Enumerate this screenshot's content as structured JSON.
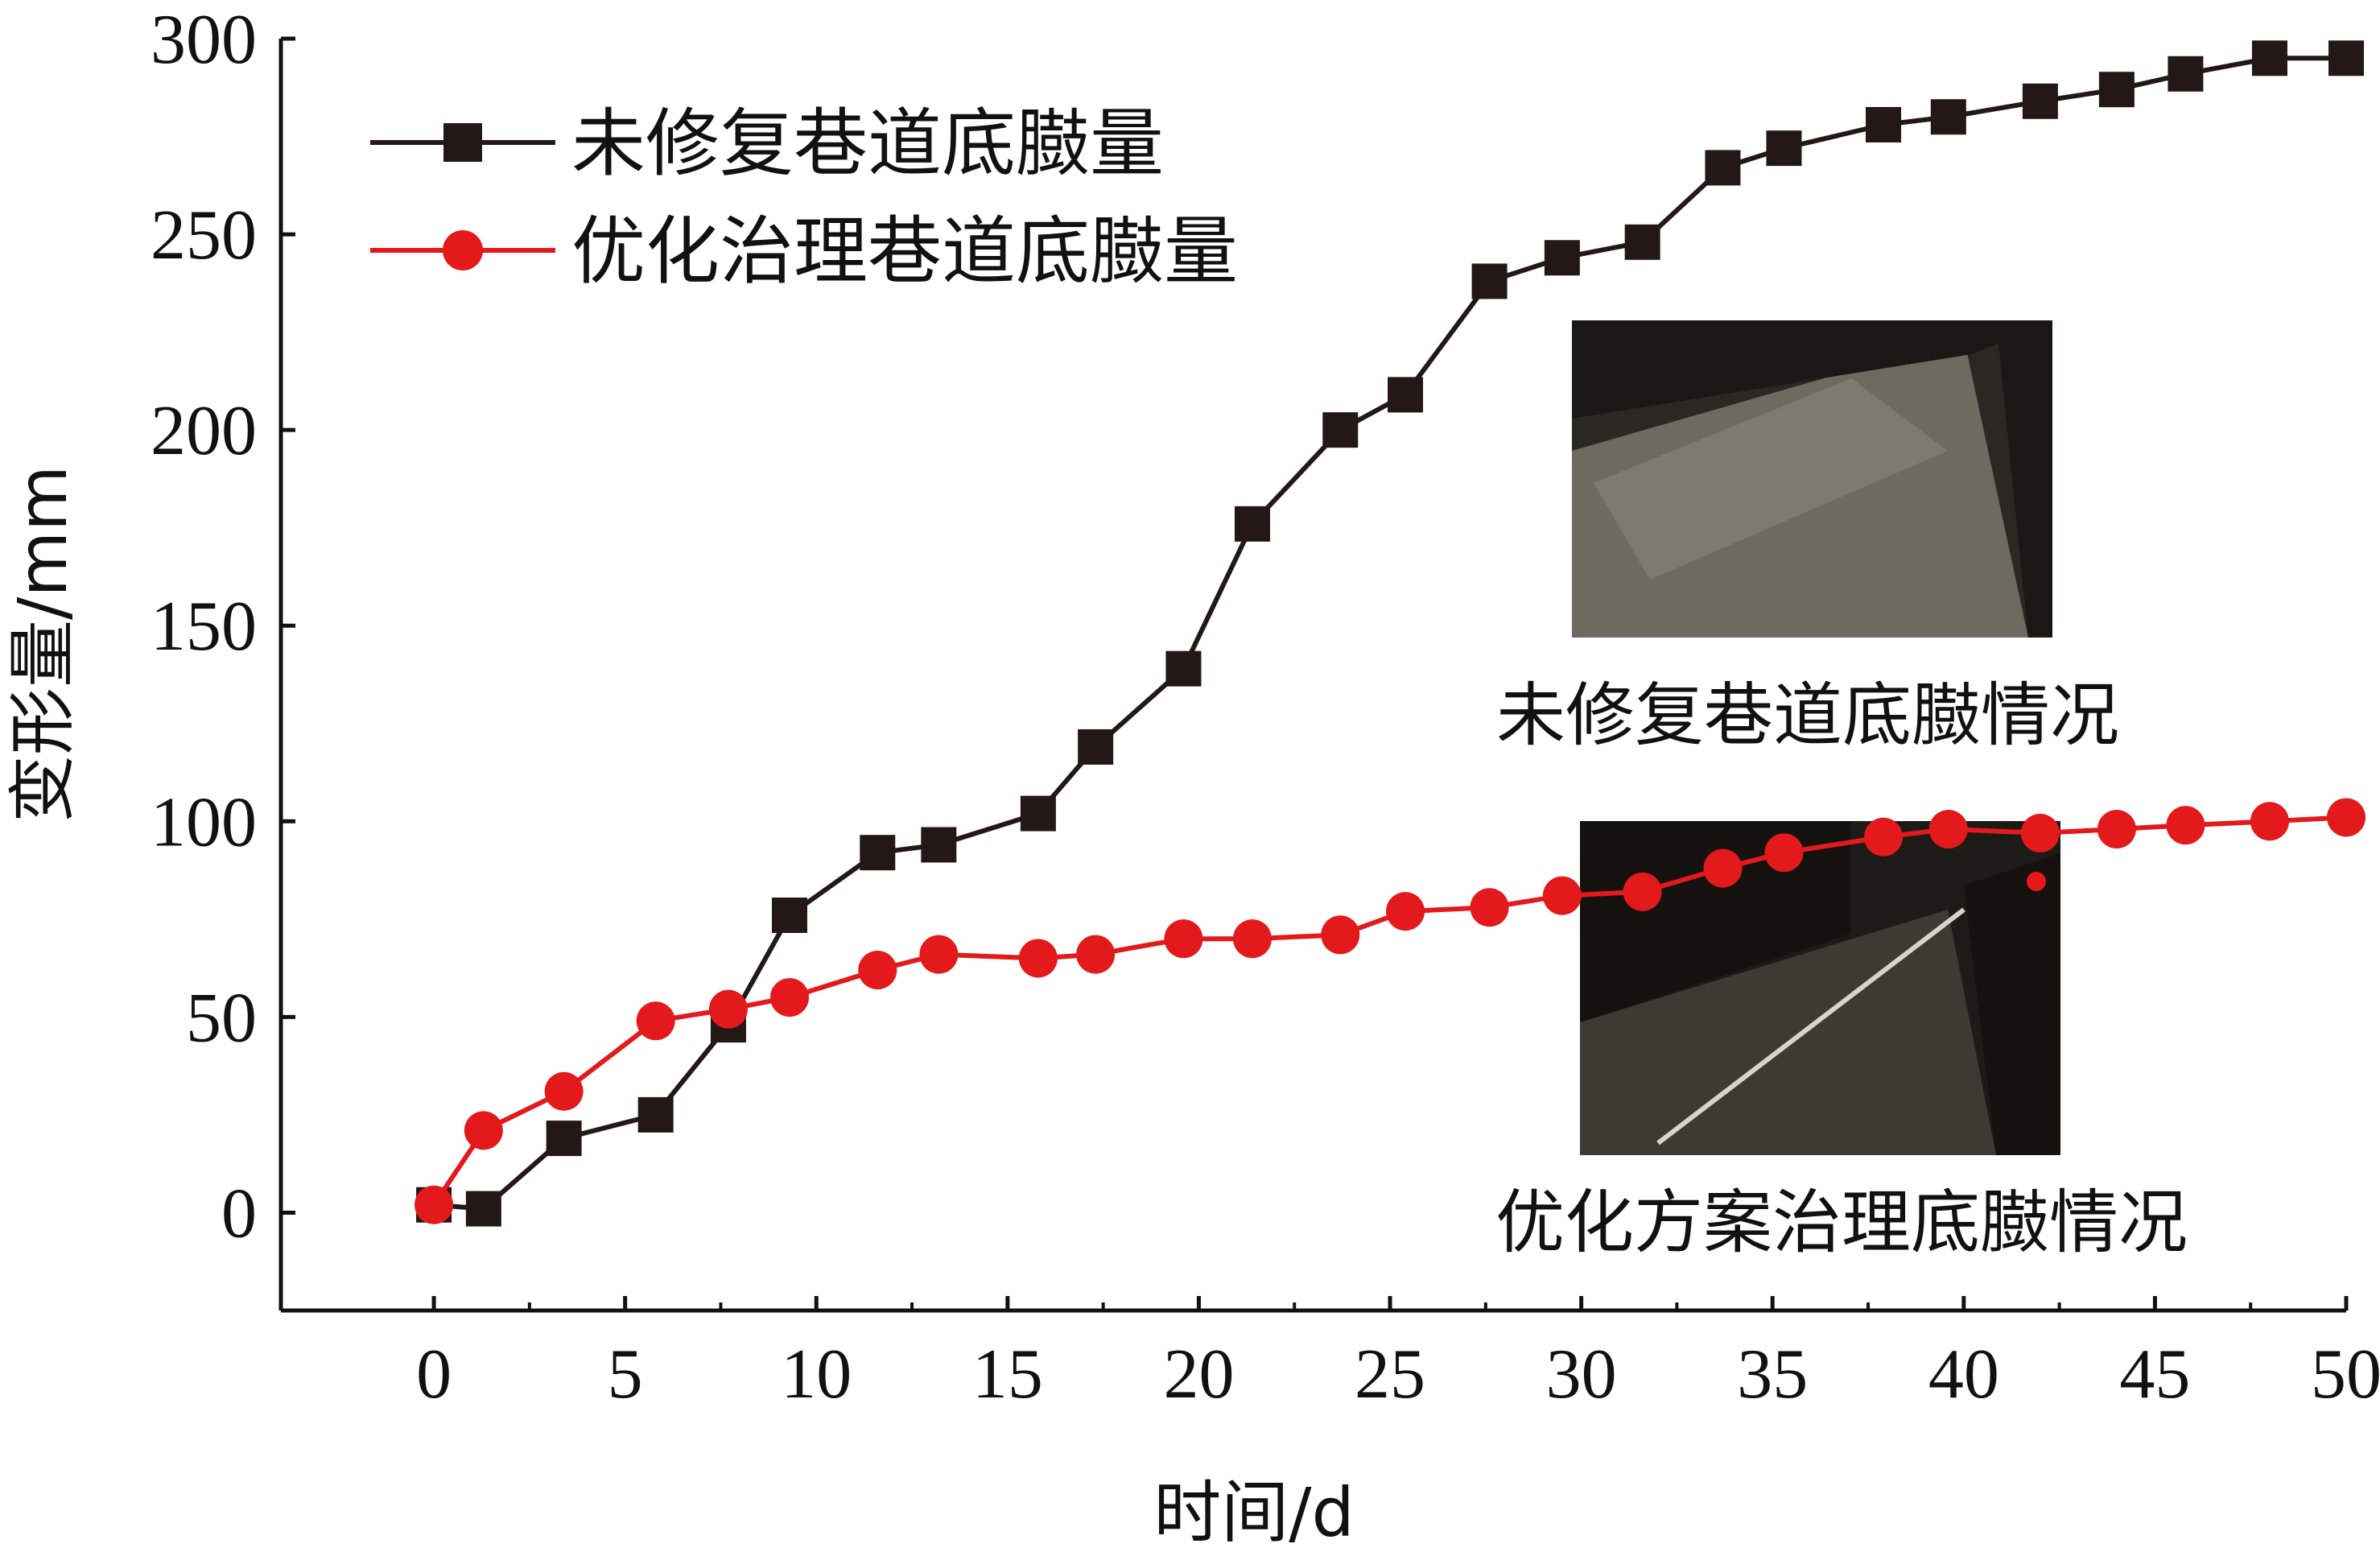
{
  "chart_data": {
    "type": "line",
    "xlabel": "时间/d",
    "ylabel": "变形量/mm",
    "xlim": [
      -4,
      50
    ],
    "ylim": [
      -25,
      300
    ],
    "xticks": [
      0,
      5,
      10,
      15,
      20,
      25,
      30,
      35,
      40,
      45,
      50
    ],
    "yticks": [
      0,
      50,
      100,
      150,
      200,
      250,
      300
    ],
    "grid": false,
    "legend_position": "top-left",
    "series": [
      {
        "name": "未修复巷道底臌量",
        "color": "#231816",
        "marker": "square",
        "x": [
          0,
          1.3,
          3.4,
          5.8,
          7.7,
          9.3,
          11.6,
          13.2,
          15.8,
          17.3,
          19.6,
          21.4,
          23.7,
          25.4,
          27.6,
          29.5,
          31.6,
          33.7,
          35.3,
          37.9,
          39.6,
          42.0,
          44.0,
          45.8,
          48.0,
          50.0
        ],
        "values": [
          2,
          1,
          19,
          25,
          48,
          76,
          92,
          94,
          102,
          119,
          139,
          176,
          200,
          209,
          238,
          244,
          248,
          267,
          272,
          278,
          280,
          284,
          287,
          291,
          295,
          295
        ]
      },
      {
        "name": "优化治理巷道底臌量",
        "color": "#e3191b",
        "marker": "circle",
        "x": [
          0,
          1.3,
          3.4,
          5.8,
          7.7,
          9.3,
          11.6,
          13.2,
          15.8,
          17.3,
          19.6,
          21.4,
          23.7,
          25.4,
          27.6,
          29.5,
          31.6,
          33.7,
          35.3,
          37.9,
          39.6,
          42.0,
          44.0,
          45.8,
          48.0,
          50.0
        ],
        "values": [
          2,
          21,
          31,
          49,
          52,
          55,
          62,
          66,
          65,
          66,
          70,
          70,
          71,
          77,
          78,
          81,
          82,
          88,
          92,
          96,
          98,
          97,
          98,
          99,
          100,
          101
        ]
      }
    ],
    "annotations": [
      "未修复巷道底臌情况",
      "优化方案治理底臌情况"
    ],
    "photo_colors": {
      "photo1": {
        "bg": "#2b2722",
        "floor": "#6f6a60",
        "wall": "#1a1714",
        "light": "#8d877c"
      },
      "photo2": {
        "bg": "#1d1b18",
        "floor": "#3d3a34",
        "wall": "#14110f",
        "light": "#d8d4c8"
      }
    }
  }
}
